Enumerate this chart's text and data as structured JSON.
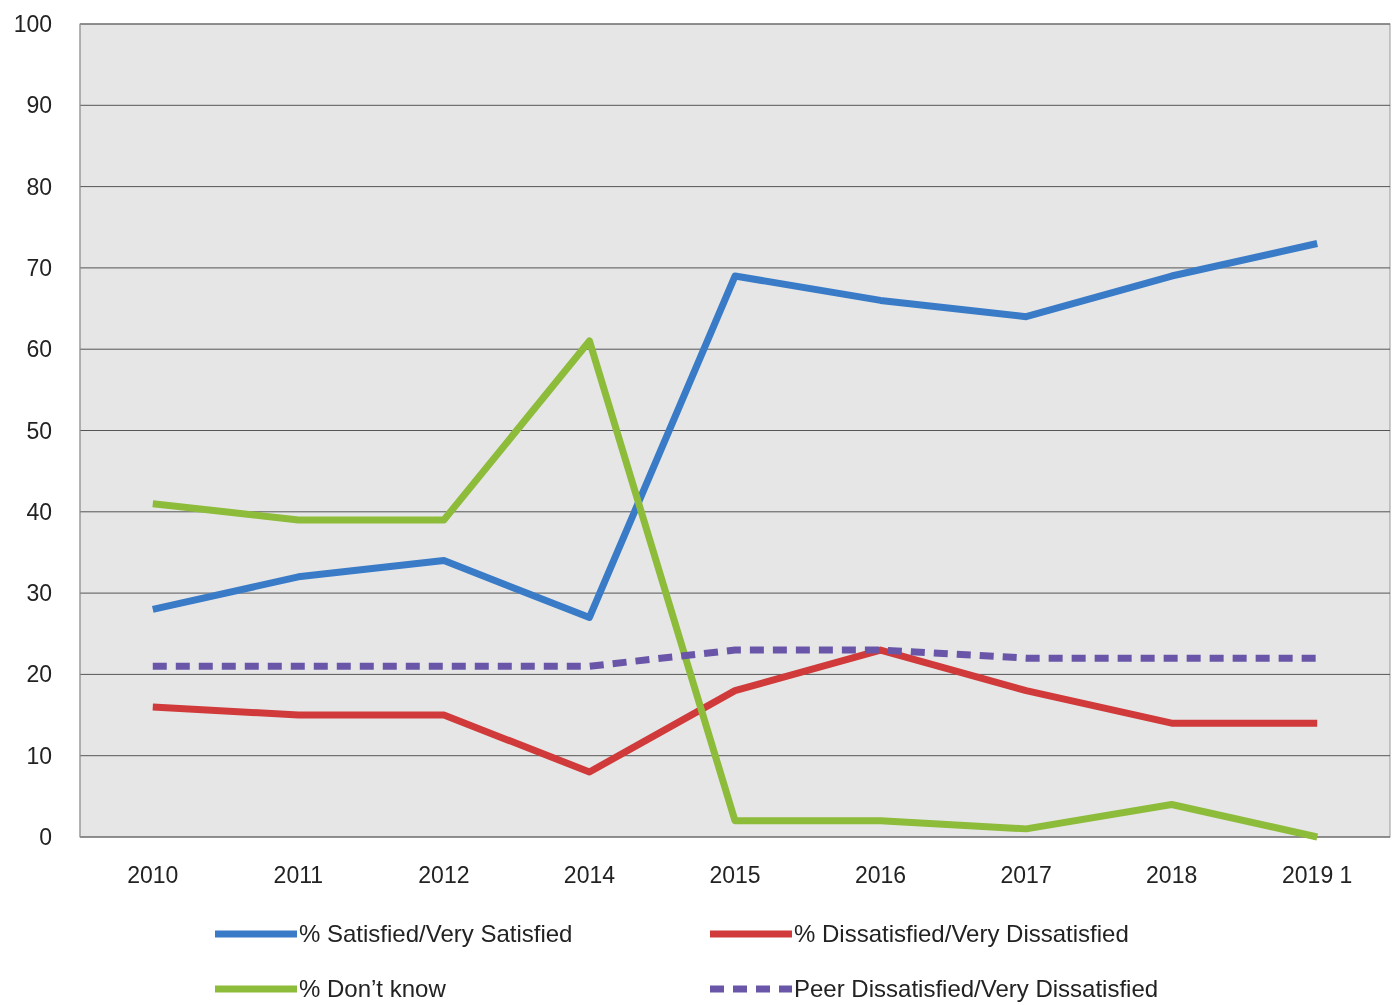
{
  "chart_data": {
    "type": "line",
    "categories": [
      "2010",
      "2011",
      "2012",
      "2014",
      "2015",
      "2016",
      "2017",
      "2018",
      "2019 1"
    ],
    "series": [
      {
        "name": "% Satisfied/Very Satisfied",
        "color": "#3a7bc8",
        "values": [
          28,
          32,
          34,
          27,
          69,
          66,
          64,
          69,
          73
        ]
      },
      {
        "name": "% Dissatisfied/Very Dissatisfied",
        "color": "#d03a3a",
        "values": [
          16,
          15,
          15,
          8,
          18,
          23,
          18,
          14,
          14
        ]
      },
      {
        "name": "% Don’t know",
        "color": "#8dbb3a",
        "values": [
          41,
          39,
          39,
          61,
          2,
          2,
          1,
          4,
          0
        ]
      },
      {
        "name": "Peer Dissatisfied/Very Dissatisfied",
        "color": "#6a56a8",
        "values": [
          21,
          21,
          21,
          21,
          23,
          23,
          22,
          22,
          22
        ],
        "line_style": "dashed"
      }
    ],
    "ylim": [
      0,
      100
    ],
    "yticks": [
      0,
      10,
      20,
      30,
      40,
      50,
      60,
      70,
      80,
      90,
      100
    ],
    "grid": "y",
    "legend": "bottom",
    "marker": "none",
    "line_style": "solid"
  }
}
